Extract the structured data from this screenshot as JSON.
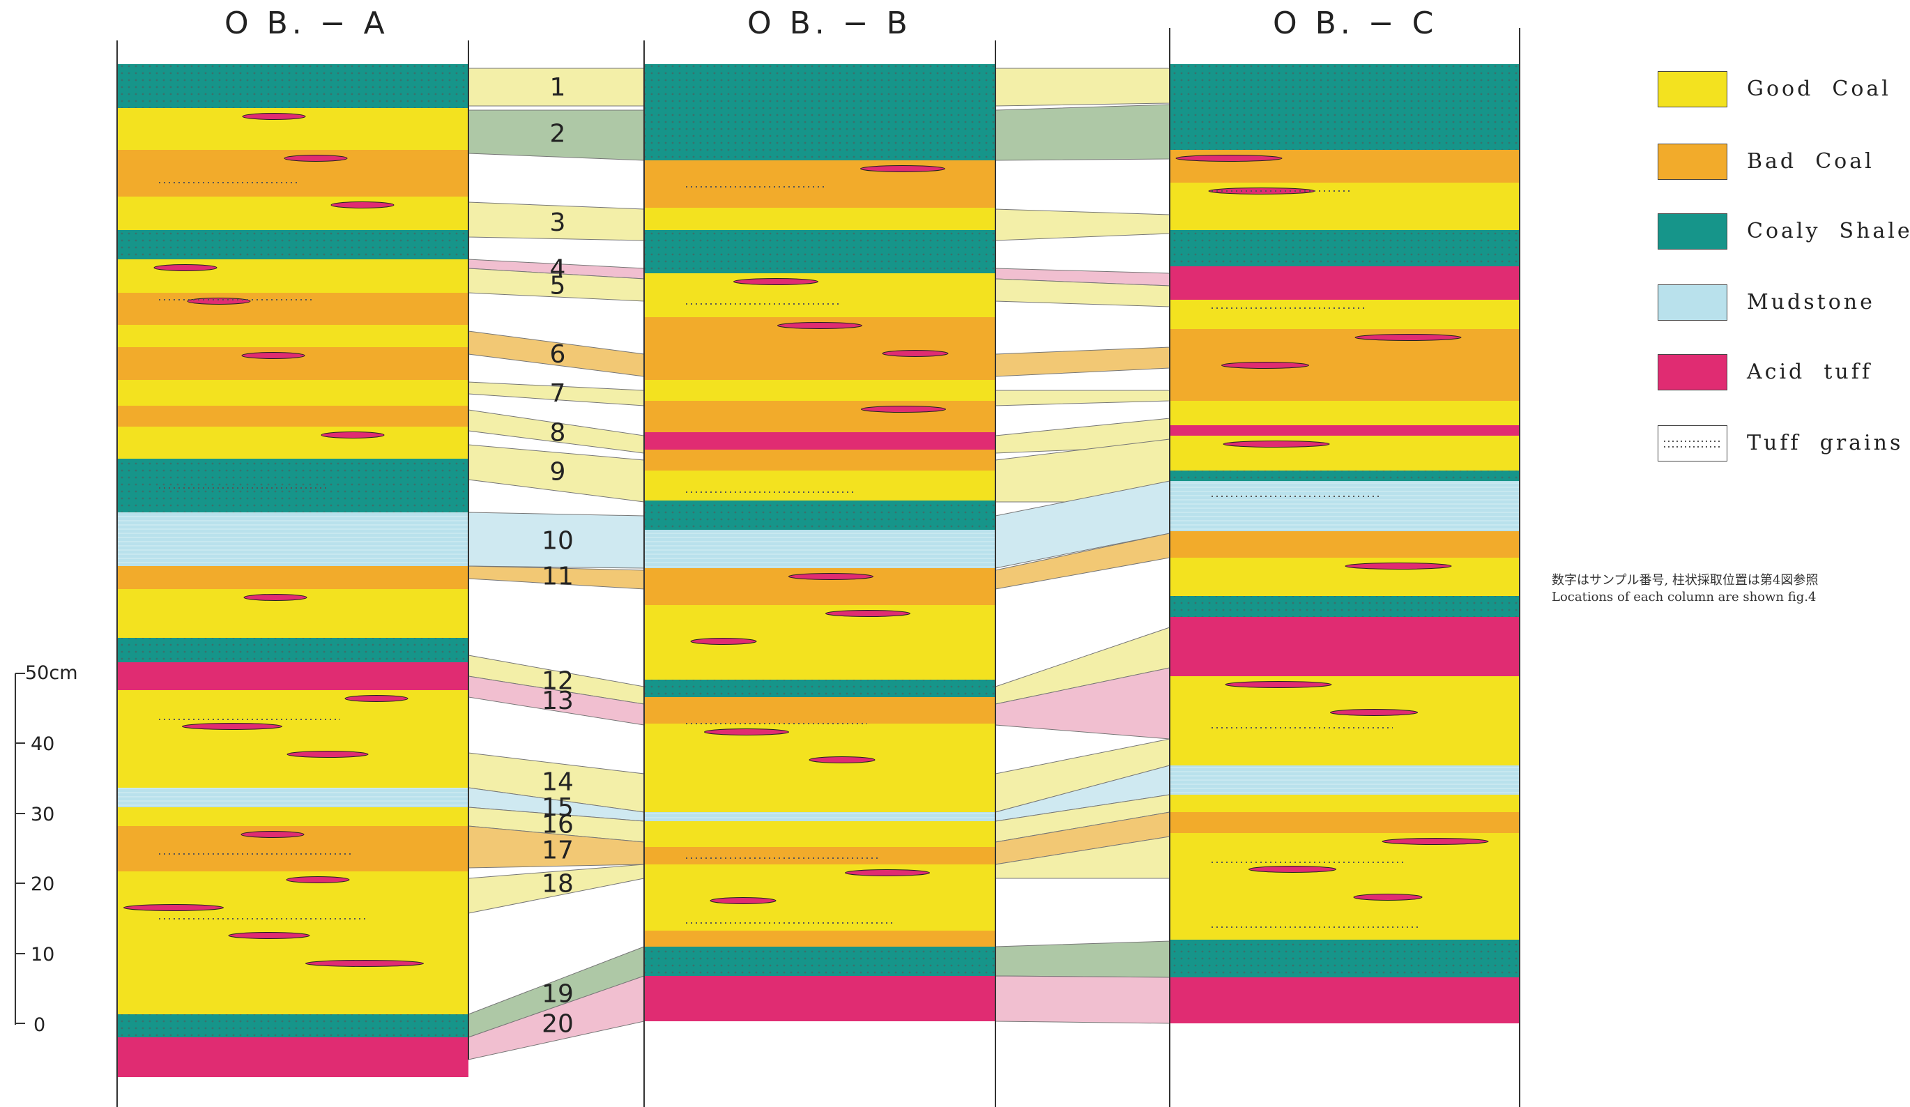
{
  "columns": [
    {
      "id": "A",
      "title": "O B. − A"
    },
    {
      "id": "B",
      "title": "O B. − B"
    },
    {
      "id": "C",
      "title": "O B. − C"
    }
  ],
  "legend": [
    {
      "key": "good",
      "label": "Good  Coal",
      "color": "#f3e21f"
    },
    {
      "key": "bad",
      "label": "Bad  Coal",
      "color": "#f2ab2b"
    },
    {
      "key": "shale",
      "label": "Coaly  Shale",
      "color": "#16958a"
    },
    {
      "key": "mud",
      "label": "Mudstone",
      "color": "#b9e1ec"
    },
    {
      "key": "tuff",
      "label": "Acid  tuff",
      "color": "#e02c72"
    },
    {
      "key": "grains",
      "label": "Tuff  grains",
      "color": "#ffffff"
    }
  ],
  "notes": {
    "japanese": "数字はサンプル番号, 柱状採取位置は第4図参照",
    "english": "Locations of each column are shown fig.4"
  },
  "scale": {
    "ticks": [
      "50cm",
      "40",
      "30",
      "20",
      "10",
      "0"
    ]
  },
  "samples": [
    "1",
    "2",
    "3",
    "4",
    "5",
    "6",
    "7",
    "8",
    "9",
    "10",
    "11",
    "12",
    "13",
    "14",
    "15",
    "16",
    "17",
    "18",
    "19",
    "20"
  ]
}
